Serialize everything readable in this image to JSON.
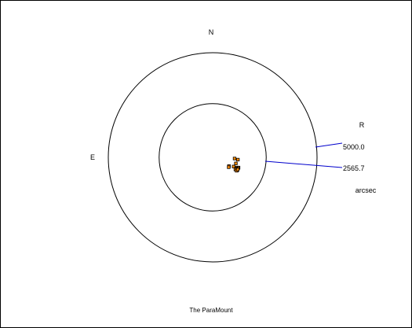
{
  "chart_data": {
    "type": "scatter",
    "projection": "polar-sky",
    "compass": {
      "north": "N",
      "east": "E"
    },
    "radius_label": "R",
    "radius_unit": "arcsec",
    "rings": [
      {
        "radius": 5000.0,
        "label": "5000.0"
      },
      {
        "radius": 2565.7,
        "label": "2565.7"
      }
    ],
    "footer": "The ParaMount",
    "marker_fill": "#ff8c00",
    "marker_edge": "#000000",
    "leader_color": "#0000cc",
    "points": [
      {
        "east": -1050,
        "north": -60
      },
      {
        "east": -1210,
        "north": -110
      },
      {
        "east": -1110,
        "north": -290
      },
      {
        "east": -780,
        "north": -420
      },
      {
        "east": -1000,
        "north": -440
      },
      {
        "east": -770,
        "north": -470
      },
      {
        "east": -1150,
        "north": -490
      },
      {
        "east": -1240,
        "north": -490
      },
      {
        "east": -1220,
        "north": -520
      },
      {
        "east": -1120,
        "north": -550
      },
      {
        "east": -1140,
        "north": -570
      },
      {
        "east": -1090,
        "north": -580
      },
      {
        "east": -1180,
        "north": -610
      },
      {
        "east": -1150,
        "north": -640
      },
      {
        "east": -1200,
        "north": -580
      }
    ]
  }
}
